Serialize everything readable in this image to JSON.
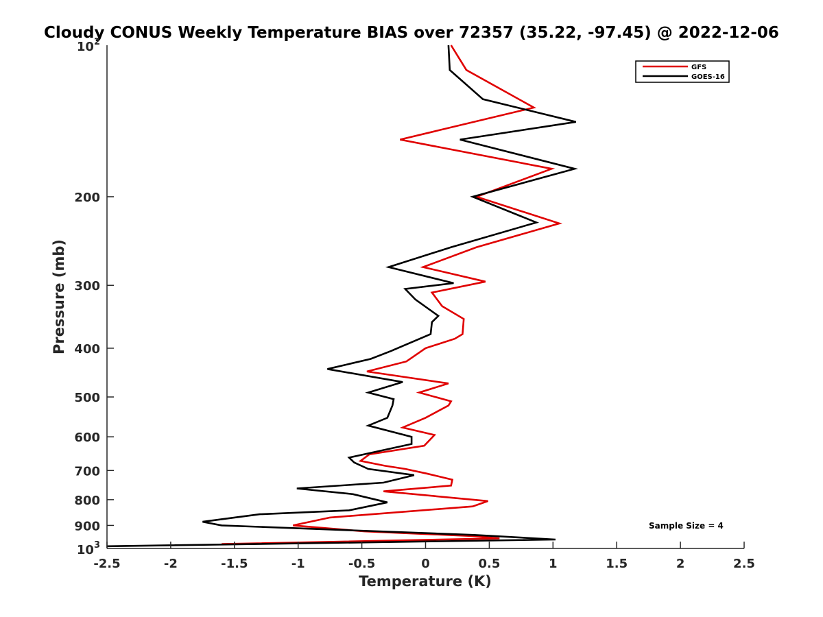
{
  "chart_data": {
    "type": "line",
    "title": "Cloudy CONUS Weekly Temperature BIAS over 72357 (35.22, -97.45) @ 2022-12-06",
    "xlabel": "Temperature (K)",
    "ylabel": "Pressure (mb)",
    "xlim": [
      -2.5,
      2.5
    ],
    "ylim": [
      100,
      1000
    ],
    "y_scale": "log",
    "y_reversed": true,
    "x_ticks": [
      -2.5,
      -2,
      -1.5,
      -1,
      -0.5,
      0,
      0.5,
      1,
      1.5,
      2,
      2.5
    ],
    "x_tick_labels": [
      "-2.5",
      "-2",
      "-1.5",
      "-1",
      "-0.5",
      "0",
      "0.5",
      "1",
      "1.5",
      "2",
      "2.5"
    ],
    "y_ticks": [
      200,
      300,
      400,
      500,
      600,
      700,
      800,
      900
    ],
    "y_tick_labels": [
      "200",
      "300",
      "400",
      "500",
      "600",
      "700",
      "800",
      "900"
    ],
    "y_tick_label_top": {
      "base": "10",
      "exponent": "2"
    },
    "y_tick_label_bottom": {
      "base": "10",
      "exponent": "3"
    },
    "grid": false,
    "legend": "top-right",
    "annotation": "Sample Size = 4",
    "series": [
      {
        "name": "GFS",
        "color": "#e00000",
        "points": [
          [
            0.2,
            100
          ],
          [
            0.32,
            112
          ],
          [
            0.85,
            133
          ],
          [
            -0.2,
            154
          ],
          [
            0.99,
            176
          ],
          [
            0.4,
            200
          ],
          [
            1.05,
            226
          ],
          [
            0.4,
            252
          ],
          [
            -0.02,
            276
          ],
          [
            0.47,
            295
          ],
          [
            0.05,
            310
          ],
          [
            0.13,
            330
          ],
          [
            0.3,
            350
          ],
          [
            0.29,
            375
          ],
          [
            0.23,
            383
          ],
          [
            0.0,
            400
          ],
          [
            -0.15,
            425
          ],
          [
            -0.46,
            445
          ],
          [
            0.18,
            470
          ],
          [
            -0.05,
            490
          ],
          [
            0.2,
            510
          ],
          [
            0.18,
            520
          ],
          [
            0.0,
            550
          ],
          [
            -0.18,
            575
          ],
          [
            0.07,
            595
          ],
          [
            -0.01,
            625
          ],
          [
            -0.44,
            650
          ],
          [
            -0.51,
            670
          ],
          [
            -0.32,
            685
          ],
          [
            -0.16,
            695
          ],
          [
            0.01,
            710
          ],
          [
            0.21,
            730
          ],
          [
            0.2,
            750
          ],
          [
            -0.33,
            770
          ],
          [
            0.49,
            805
          ],
          [
            0.37,
            825
          ],
          [
            -0.75,
            868
          ],
          [
            -1.04,
            900
          ],
          [
            -0.48,
            925
          ],
          [
            0.37,
            945
          ],
          [
            0.58,
            955
          ],
          [
            -1.6,
            980
          ]
        ]
      },
      {
        "name": "GOES-16",
        "color": "#000000",
        "points": [
          [
            0.18,
            100
          ],
          [
            0.19,
            112
          ],
          [
            0.45,
            128
          ],
          [
            1.18,
            142
          ],
          [
            0.27,
            154
          ],
          [
            1.17,
            176
          ],
          [
            0.37,
            200
          ],
          [
            0.87,
            225
          ],
          [
            0.2,
            252
          ],
          [
            -0.29,
            276
          ],
          [
            0.22,
            297
          ],
          [
            -0.16,
            305
          ],
          [
            -0.08,
            320
          ],
          [
            0.1,
            345
          ],
          [
            0.05,
            355
          ],
          [
            0.04,
            375
          ],
          [
            -0.27,
            405
          ],
          [
            -0.43,
            420
          ],
          [
            -0.77,
            440
          ],
          [
            -0.18,
            467
          ],
          [
            -0.45,
            490
          ],
          [
            -0.25,
            505
          ],
          [
            -0.26,
            520
          ],
          [
            -0.3,
            550
          ],
          [
            -0.45,
            570
          ],
          [
            -0.11,
            600
          ],
          [
            -0.11,
            620
          ],
          [
            -0.6,
            660
          ],
          [
            -0.56,
            675
          ],
          [
            -0.45,
            695
          ],
          [
            -0.09,
            715
          ],
          [
            -0.33,
            740
          ],
          [
            -1.01,
            760
          ],
          [
            -0.57,
            780
          ],
          [
            -0.3,
            810
          ],
          [
            -0.6,
            840
          ],
          [
            -1.3,
            855
          ],
          [
            -1.75,
            885
          ],
          [
            -1.6,
            900
          ],
          [
            0.38,
            940
          ],
          [
            1.02,
            960
          ],
          [
            -2.5,
            990
          ]
        ]
      }
    ]
  }
}
